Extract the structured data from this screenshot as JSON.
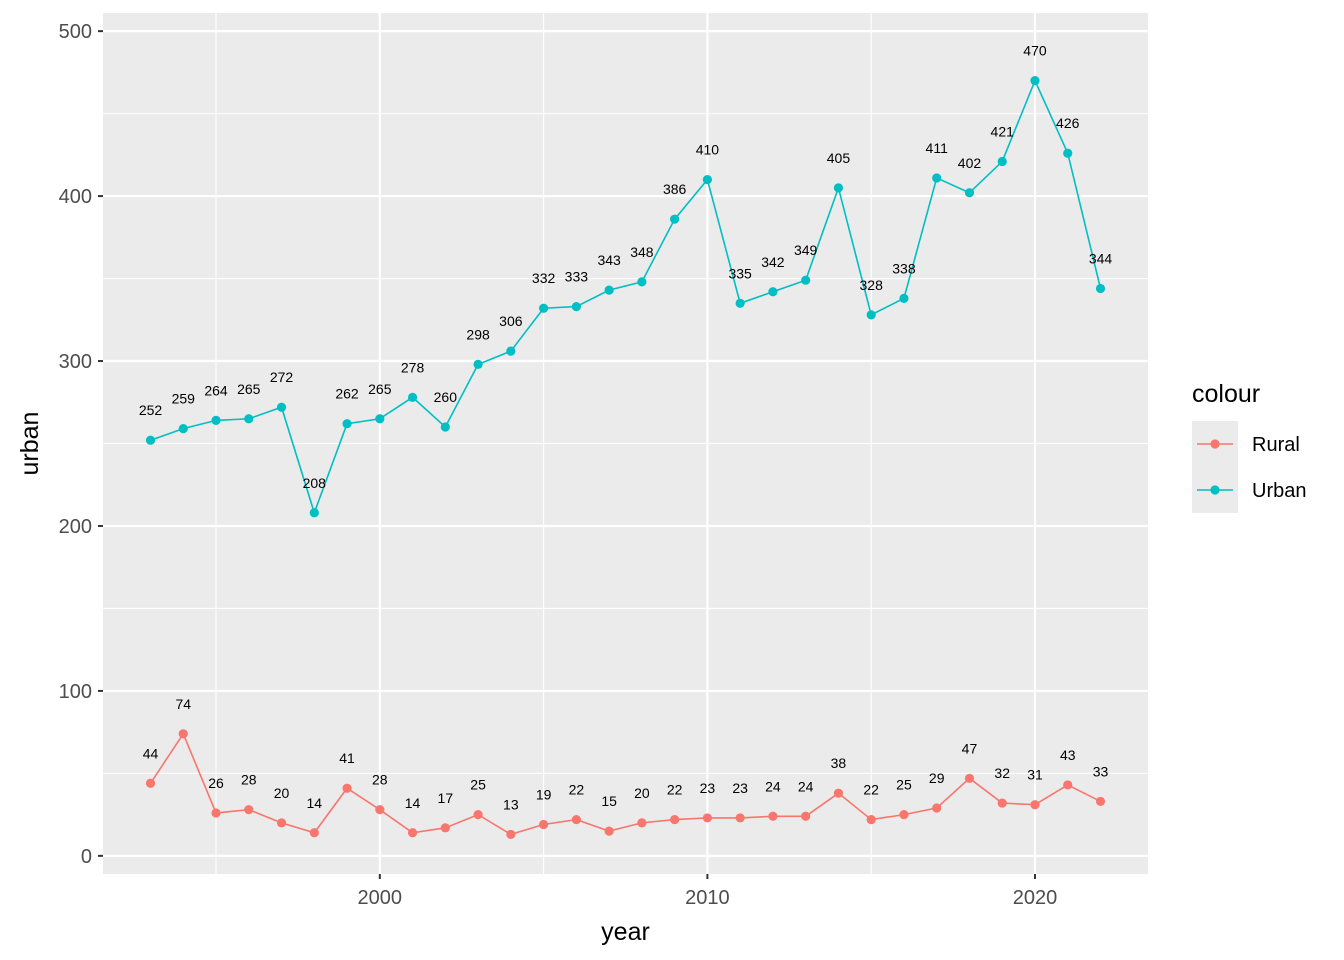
{
  "chart_data": {
    "type": "line",
    "title": "",
    "xlabel": "year",
    "ylabel": "urban",
    "x": [
      1993,
      1994,
      1995,
      1996,
      1997,
      1998,
      1999,
      2000,
      2001,
      2002,
      2003,
      2004,
      2005,
      2006,
      2007,
      2008,
      2009,
      2010,
      2011,
      2012,
      2013,
      2014,
      2015,
      2016,
      2017,
      2018,
      2019,
      2020,
      2021,
      2022
    ],
    "series": [
      {
        "name": "Rural",
        "color": "#F8766D",
        "values": [
          44,
          74,
          26,
          28,
          20,
          14,
          41,
          28,
          14,
          17,
          25,
          13,
          19,
          22,
          15,
          20,
          22,
          23,
          23,
          24,
          24,
          38,
          22,
          25,
          29,
          47,
          32,
          31,
          43,
          33
        ]
      },
      {
        "name": "Urban",
        "color": "#00BFC4",
        "values": [
          252,
          259,
          264,
          265,
          272,
          208,
          262,
          265,
          278,
          260,
          298,
          306,
          332,
          333,
          343,
          348,
          386,
          410,
          335,
          342,
          349,
          405,
          328,
          338,
          411,
          402,
          421,
          470,
          426,
          344
        ]
      }
    ],
    "xlim": [
      1991.55,
      2023.45
    ],
    "ylim": [
      -11,
      511
    ],
    "x_ticks": [
      2000,
      2010,
      2020
    ],
    "x_tick_labels": [
      "2000",
      "2010",
      "2020"
    ],
    "y_ticks": [
      0,
      100,
      200,
      300,
      400,
      500
    ],
    "y_tick_labels": [
      "0",
      "100",
      "200",
      "300",
      "400",
      "500"
    ],
    "grid": true,
    "panel_background": "#EBEBEB",
    "legend": {
      "title": "colour",
      "position": "right",
      "entries": [
        "Rural",
        "Urban"
      ]
    }
  }
}
